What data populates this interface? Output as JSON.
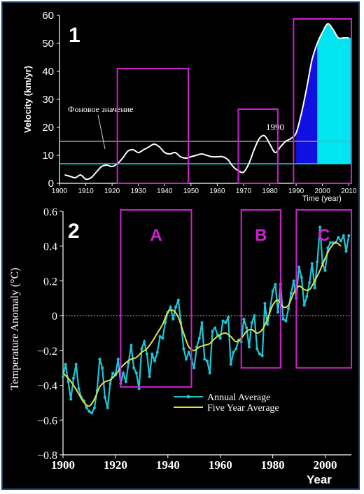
{
  "chart_data": [
    {
      "panel": "1",
      "type": "line",
      "ylabel": "Velocity (km/yr)",
      "xlabel": "Time (year)",
      "xticks": [
        "1900",
        "1910",
        "1920",
        "1930",
        "1940",
        "1950",
        "1960",
        "1970",
        "1980",
        "1990",
        "2000",
        "2010"
      ],
      "yticks": [
        "0",
        "10",
        "20",
        "30",
        "40",
        "50",
        "60"
      ],
      "xlim": [
        1900,
        2011
      ],
      "ylim": [
        0,
        60
      ],
      "annotations": {
        "background_label": "Фоновое значение",
        "year_label": "1990"
      },
      "reference_lines": [
        {
          "y": 15,
          "color": "#9a9a9a"
        },
        {
          "y": 7,
          "color": "#00e5e5"
        }
      ],
      "fills": [
        {
          "x_from": 1990,
          "x_to": 1998,
          "color": "#1010e0"
        },
        {
          "x_from": 1998,
          "x_to": 2011,
          "color": "#00e5f0"
        }
      ],
      "series": [
        {
          "color": "#ffffff",
          "x": [
            1902,
            1904,
            1906,
            1908,
            1910,
            1912,
            1914,
            1916,
            1918,
            1920,
            1922,
            1924,
            1926,
            1928,
            1930,
            1932,
            1934,
            1936,
            1938,
            1940,
            1942,
            1944,
            1946,
            1948,
            1950,
            1952,
            1954,
            1956,
            1958,
            1960,
            1962,
            1964,
            1966,
            1968,
            1970,
            1972,
            1974,
            1976,
            1978,
            1980,
            1982,
            1984,
            1986,
            1988,
            1990,
            1992,
            1994,
            1996,
            1998,
            2000,
            2002,
            2004,
            2006,
            2008,
            2010
          ],
          "y": [
            3,
            2.5,
            2,
            3,
            1.5,
            2,
            4,
            6,
            6.5,
            6,
            7,
            9,
            11.5,
            12,
            11,
            12,
            13,
            14,
            13,
            11,
            10.5,
            11,
            9.5,
            9,
            9.5,
            10,
            10.5,
            10,
            9.5,
            9.5,
            9.5,
            8.5,
            6,
            4.5,
            4,
            7,
            12,
            16,
            17,
            14,
            11,
            13,
            15,
            16,
            18,
            25,
            34,
            44,
            50,
            54,
            57,
            55,
            52,
            52,
            52
          ]
        }
      ],
      "colors": {
        "line": "#ffffff",
        "box": "#d020d0"
      }
    },
    {
      "panel": "2",
      "type": "line",
      "ylabel": "Temperature Anomaly (°C)",
      "xlabel": "Year",
      "xticks": [
        "1900",
        "1920",
        "1940",
        "1960",
        "1980",
        "2000"
      ],
      "yticks": [
        "0.6",
        "0.4",
        "0.2",
        "0",
        "−0.2",
        "−0.4",
        "−0.6",
        "−0.8"
      ],
      "xlim": [
        1900,
        2010
      ],
      "ylim": [
        -0.8,
        0.6
      ],
      "legend": {
        "position": "bottom-right"
      },
      "series": [
        {
          "name": "Annual Average",
          "color": "#19c8d8",
          "x": [
            1900,
            1901,
            1902,
            1903,
            1904,
            1905,
            1906,
            1907,
            1908,
            1909,
            1910,
            1911,
            1912,
            1913,
            1914,
            1915,
            1916,
            1917,
            1918,
            1919,
            1920,
            1921,
            1922,
            1923,
            1924,
            1925,
            1926,
            1927,
            1928,
            1929,
            1930,
            1931,
            1932,
            1933,
            1934,
            1935,
            1936,
            1937,
            1938,
            1939,
            1940,
            1941,
            1942,
            1943,
            1944,
            1945,
            1946,
            1947,
            1948,
            1949,
            1950,
            1951,
            1952,
            1953,
            1954,
            1955,
            1956,
            1957,
            1958,
            1959,
            1960,
            1961,
            1962,
            1963,
            1964,
            1965,
            1966,
            1967,
            1968,
            1969,
            1970,
            1971,
            1972,
            1973,
            1974,
            1975,
            1976,
            1977,
            1978,
            1979,
            1980,
            1981,
            1982,
            1983,
            1984,
            1985,
            1986,
            1987,
            1988,
            1989,
            1990,
            1991,
            1992,
            1993,
            1994,
            1995,
            1996,
            1997,
            1998,
            1999,
            2000,
            2001,
            2002,
            2003,
            2004,
            2005,
            2006,
            2007,
            2008,
            2009
          ],
          "y": [
            -0.35,
            -0.28,
            -0.38,
            -0.48,
            -0.36,
            -0.28,
            -0.42,
            -0.47,
            -0.49,
            -0.53,
            -0.55,
            -0.56,
            -0.53,
            -0.43,
            -0.25,
            -0.3,
            -0.47,
            -0.53,
            -0.39,
            -0.33,
            -0.34,
            -0.25,
            -0.39,
            -0.33,
            -0.38,
            -0.27,
            -0.17,
            -0.3,
            -0.33,
            -0.42,
            -0.19,
            -0.15,
            -0.22,
            -0.35,
            -0.22,
            -0.26,
            -0.21,
            -0.12,
            -0.13,
            -0.04,
            0.02,
            0.05,
            -0.02,
            0.05,
            0.09,
            -0.04,
            -0.19,
            -0.25,
            -0.21,
            -0.25,
            -0.3,
            -0.18,
            -0.13,
            -0.04,
            -0.25,
            -0.26,
            -0.33,
            -0.09,
            -0.07,
            -0.11,
            -0.13,
            -0.03,
            -0.04,
            -0.01,
            -0.28,
            -0.21,
            -0.19,
            -0.14,
            -0.15,
            -0.02,
            -0.07,
            -0.18,
            -0.04,
            0.0,
            -0.19,
            -0.22,
            -0.23,
            0.07,
            -0.05,
            0.04,
            0.14,
            0.18,
            0.02,
            0.18,
            -0.02,
            -0.03,
            0.04,
            0.13,
            0.2,
            0.1,
            0.28,
            0.22,
            0.06,
            0.11,
            0.19,
            0.3,
            0.16,
            0.31,
            0.51,
            0.3,
            0.26,
            0.39,
            0.42,
            0.42,
            0.42,
            0.45,
            0.43,
            0.46,
            0.37,
            0.46
          ]
        },
        {
          "name": "Five Year Average",
          "color": "#e8e040",
          "x": [
            1900,
            1902,
            1904,
            1906,
            1908,
            1910,
            1912,
            1914,
            1916,
            1918,
            1920,
            1922,
            1924,
            1926,
            1928,
            1930,
            1932,
            1934,
            1936,
            1938,
            1940,
            1942,
            1944,
            1946,
            1948,
            1950,
            1952,
            1954,
            1956,
            1958,
            1960,
            1962,
            1964,
            1966,
            1968,
            1970,
            1972,
            1974,
            1976,
            1978,
            1980,
            1982,
            1984,
            1986,
            1988,
            1990,
            1992,
            1994,
            1996,
            1998,
            2000,
            2002,
            2004,
            2006
          ],
          "y": [
            -0.33,
            -0.36,
            -0.4,
            -0.45,
            -0.5,
            -0.52,
            -0.48,
            -0.41,
            -0.38,
            -0.37,
            -0.34,
            -0.3,
            -0.27,
            -0.25,
            -0.24,
            -0.21,
            -0.19,
            -0.15,
            -0.1,
            -0.05,
            0.02,
            0.03,
            -0.01,
            -0.1,
            -0.18,
            -0.2,
            -0.18,
            -0.17,
            -0.16,
            -0.13,
            -0.11,
            -0.1,
            -0.12,
            -0.15,
            -0.13,
            -0.09,
            -0.08,
            -0.1,
            -0.08,
            -0.02,
            0.06,
            0.09,
            0.05,
            0.06,
            0.13,
            0.17,
            0.15,
            0.15,
            0.2,
            0.26,
            0.33,
            0.39,
            0.42,
            0.4
          ]
        }
      ],
      "zero_line": {
        "y": 0,
        "style": "dotted"
      }
    }
  ],
  "panel_labels": {
    "top": "1",
    "bottom": "2"
  },
  "regions": [
    {
      "label": "A",
      "x_from": 1922,
      "x_to": 1949
    },
    {
      "label": "B",
      "x_from": 1968,
      "x_to": 1983
    },
    {
      "label": "C",
      "x_from": 1989,
      "x_to": 2011
    }
  ]
}
